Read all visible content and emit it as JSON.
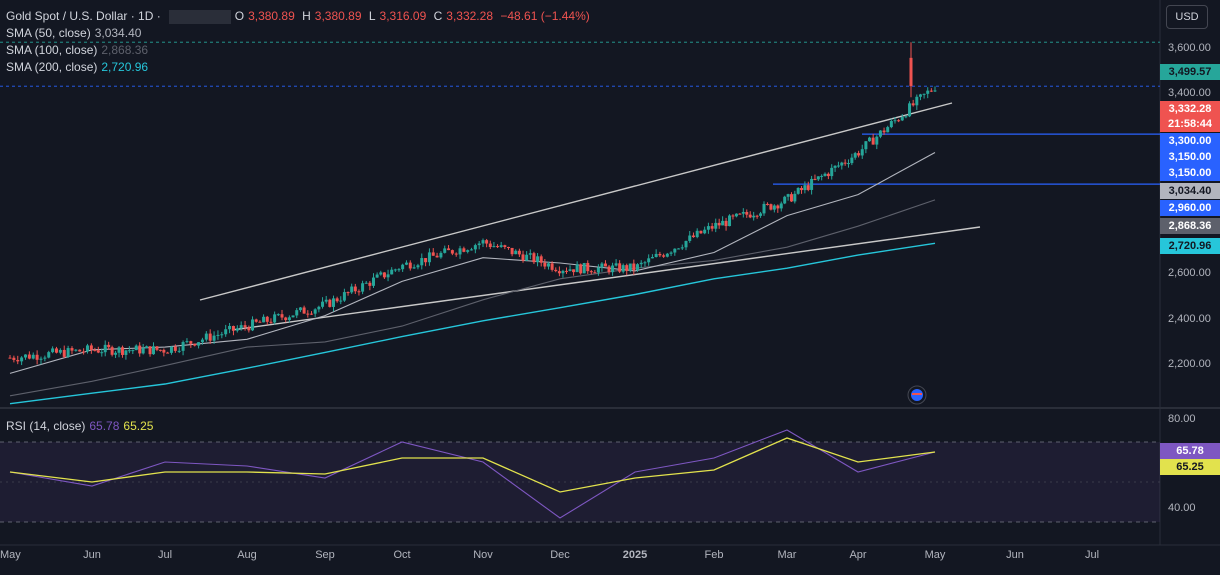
{
  "header": {
    "symbol": "Gold Spot / U.S. Dollar · 1D ·",
    "ohlc": {
      "o_label": "O",
      "o": "3,380.89",
      "h_label": "H",
      "h": "3,380.89",
      "l_label": "L",
      "l": "3,316.09",
      "c_label": "C",
      "c": "3,332.28",
      "change": "−48.61 (−1.44%)"
    },
    "currency": "USD",
    "indicators": [
      {
        "label": "SMA (50, close)",
        "value": "3,034.40",
        "color": "#b2b5be"
      },
      {
        "label": "SMA (100, close)",
        "value": "2,868.36",
        "color": "#5d606b"
      },
      {
        "label": "SMA (200, close)",
        "value": "2,720.96",
        "color": "#26c6da"
      }
    ],
    "rsi_label": "RSI (14, close)",
    "rsi_values": [
      "65.78",
      "65.25"
    ]
  },
  "colors": {
    "background": "#131722",
    "up": "#26a69a",
    "down": "#ef5350",
    "sma50": "#b2b5be",
    "sma100": "#5d606b",
    "sma200": "#26c6da",
    "rsi": "#7e57c2",
    "rsi_ma": "#e2e24d",
    "trend": "#c8c8c8",
    "level": "#2962ff"
  },
  "price_axis": {
    "ticks": [
      "3,600.00",
      "3,400.00",
      "3,200.00",
      "2,600.00",
      "2,400.00",
      "2,200.00"
    ]
  },
  "price_labels": [
    {
      "text": "3,499.57",
      "bg": "#26a69a",
      "fg": "#131722"
    },
    {
      "text": "3,332.28",
      "bg": "#ef5350",
      "fg": "#ffffff"
    },
    {
      "text": "21:58:44",
      "bg": "#ef5350",
      "fg": "#ffffff"
    },
    {
      "text": "3,300.00",
      "bg": "#2962ff",
      "fg": "#ffffff"
    },
    {
      "text": "3,150.00",
      "bg": "#2962ff",
      "fg": "#ffffff"
    },
    {
      "text": "3,150.00",
      "bg": "#2962ff",
      "fg": "#ffffff"
    },
    {
      "text": "3,034.40",
      "bg": "#b2b5be",
      "fg": "#131722"
    },
    {
      "text": "2,960.00",
      "bg": "#2962ff",
      "fg": "#ffffff"
    },
    {
      "text": "2,868.36",
      "bg": "#5d606b",
      "fg": "#ffffff"
    },
    {
      "text": "2,720.96",
      "bg": "#26c6da",
      "fg": "#131722"
    }
  ],
  "rsi_axis": {
    "ticks": [
      "80.00",
      "40.00"
    ]
  },
  "rsi_labels": [
    {
      "text": "65.78",
      "bg": "#7e57c2",
      "fg": "#ffffff"
    },
    {
      "text": "65.25",
      "bg": "#e2e24d",
      "fg": "#131722"
    }
  ],
  "time_axis": [
    "May",
    "Jun",
    "Jul",
    "Aug",
    "Sep",
    "Oct",
    "Nov",
    "Dec",
    "2025",
    "Feb",
    "Mar",
    "Apr",
    "May",
    "Jun",
    "Jul"
  ],
  "chart_data": {
    "type": "line",
    "title": "Gold Spot / U.S. Dollar · 1D",
    "price_range": [
      2120,
      3660
    ],
    "x": [
      "May",
      "Jun",
      "Jul",
      "Aug",
      "Sep",
      "Oct",
      "Nov",
      "Dec",
      "2025",
      "Feb",
      "Mar",
      "Apr",
      "May"
    ],
    "series": [
      {
        "name": "Close",
        "values": [
          2300,
          2330,
          2330,
          2420,
          2500,
          2650,
          2740,
          2640,
          2640,
          2800,
          2900,
          3080,
          3332
        ]
      },
      {
        "name": "SMA (50, close)",
        "values": [
          2240,
          2330,
          2340,
          2370,
          2460,
          2590,
          2680,
          2660,
          2630,
          2700,
          2840,
          2920,
          3080
        ]
      },
      {
        "name": "SMA (100, close)",
        "values": [
          2155,
          2210,
          2270,
          2340,
          2360,
          2420,
          2520,
          2600,
          2640,
          2670,
          2720,
          2800,
          2900
        ]
      },
      {
        "name": "SMA (200, close)",
        "values": [
          2125,
          2165,
          2200,
          2260,
          2320,
          2380,
          2440,
          2490,
          2540,
          2600,
          2640,
          2690,
          2735
        ]
      }
    ],
    "rsi": {
      "range": [
        25,
        85
      ],
      "levels": [
        70,
        30
      ],
      "series": [
        {
          "name": "RSI (14, close)",
          "values": [
            55,
            48,
            60,
            58,
            52,
            70,
            60,
            32,
            55,
            62,
            76,
            55,
            65
          ]
        },
        {
          "name": "RSI MA",
          "values": [
            55,
            50,
            55,
            55,
            54,
            62,
            62,
            45,
            52,
            56,
            72,
            60,
            65
          ]
        }
      ]
    },
    "annotations": [
      "3,499.57",
      "3,300.00",
      "3,150.00",
      "2,960.00"
    ]
  }
}
